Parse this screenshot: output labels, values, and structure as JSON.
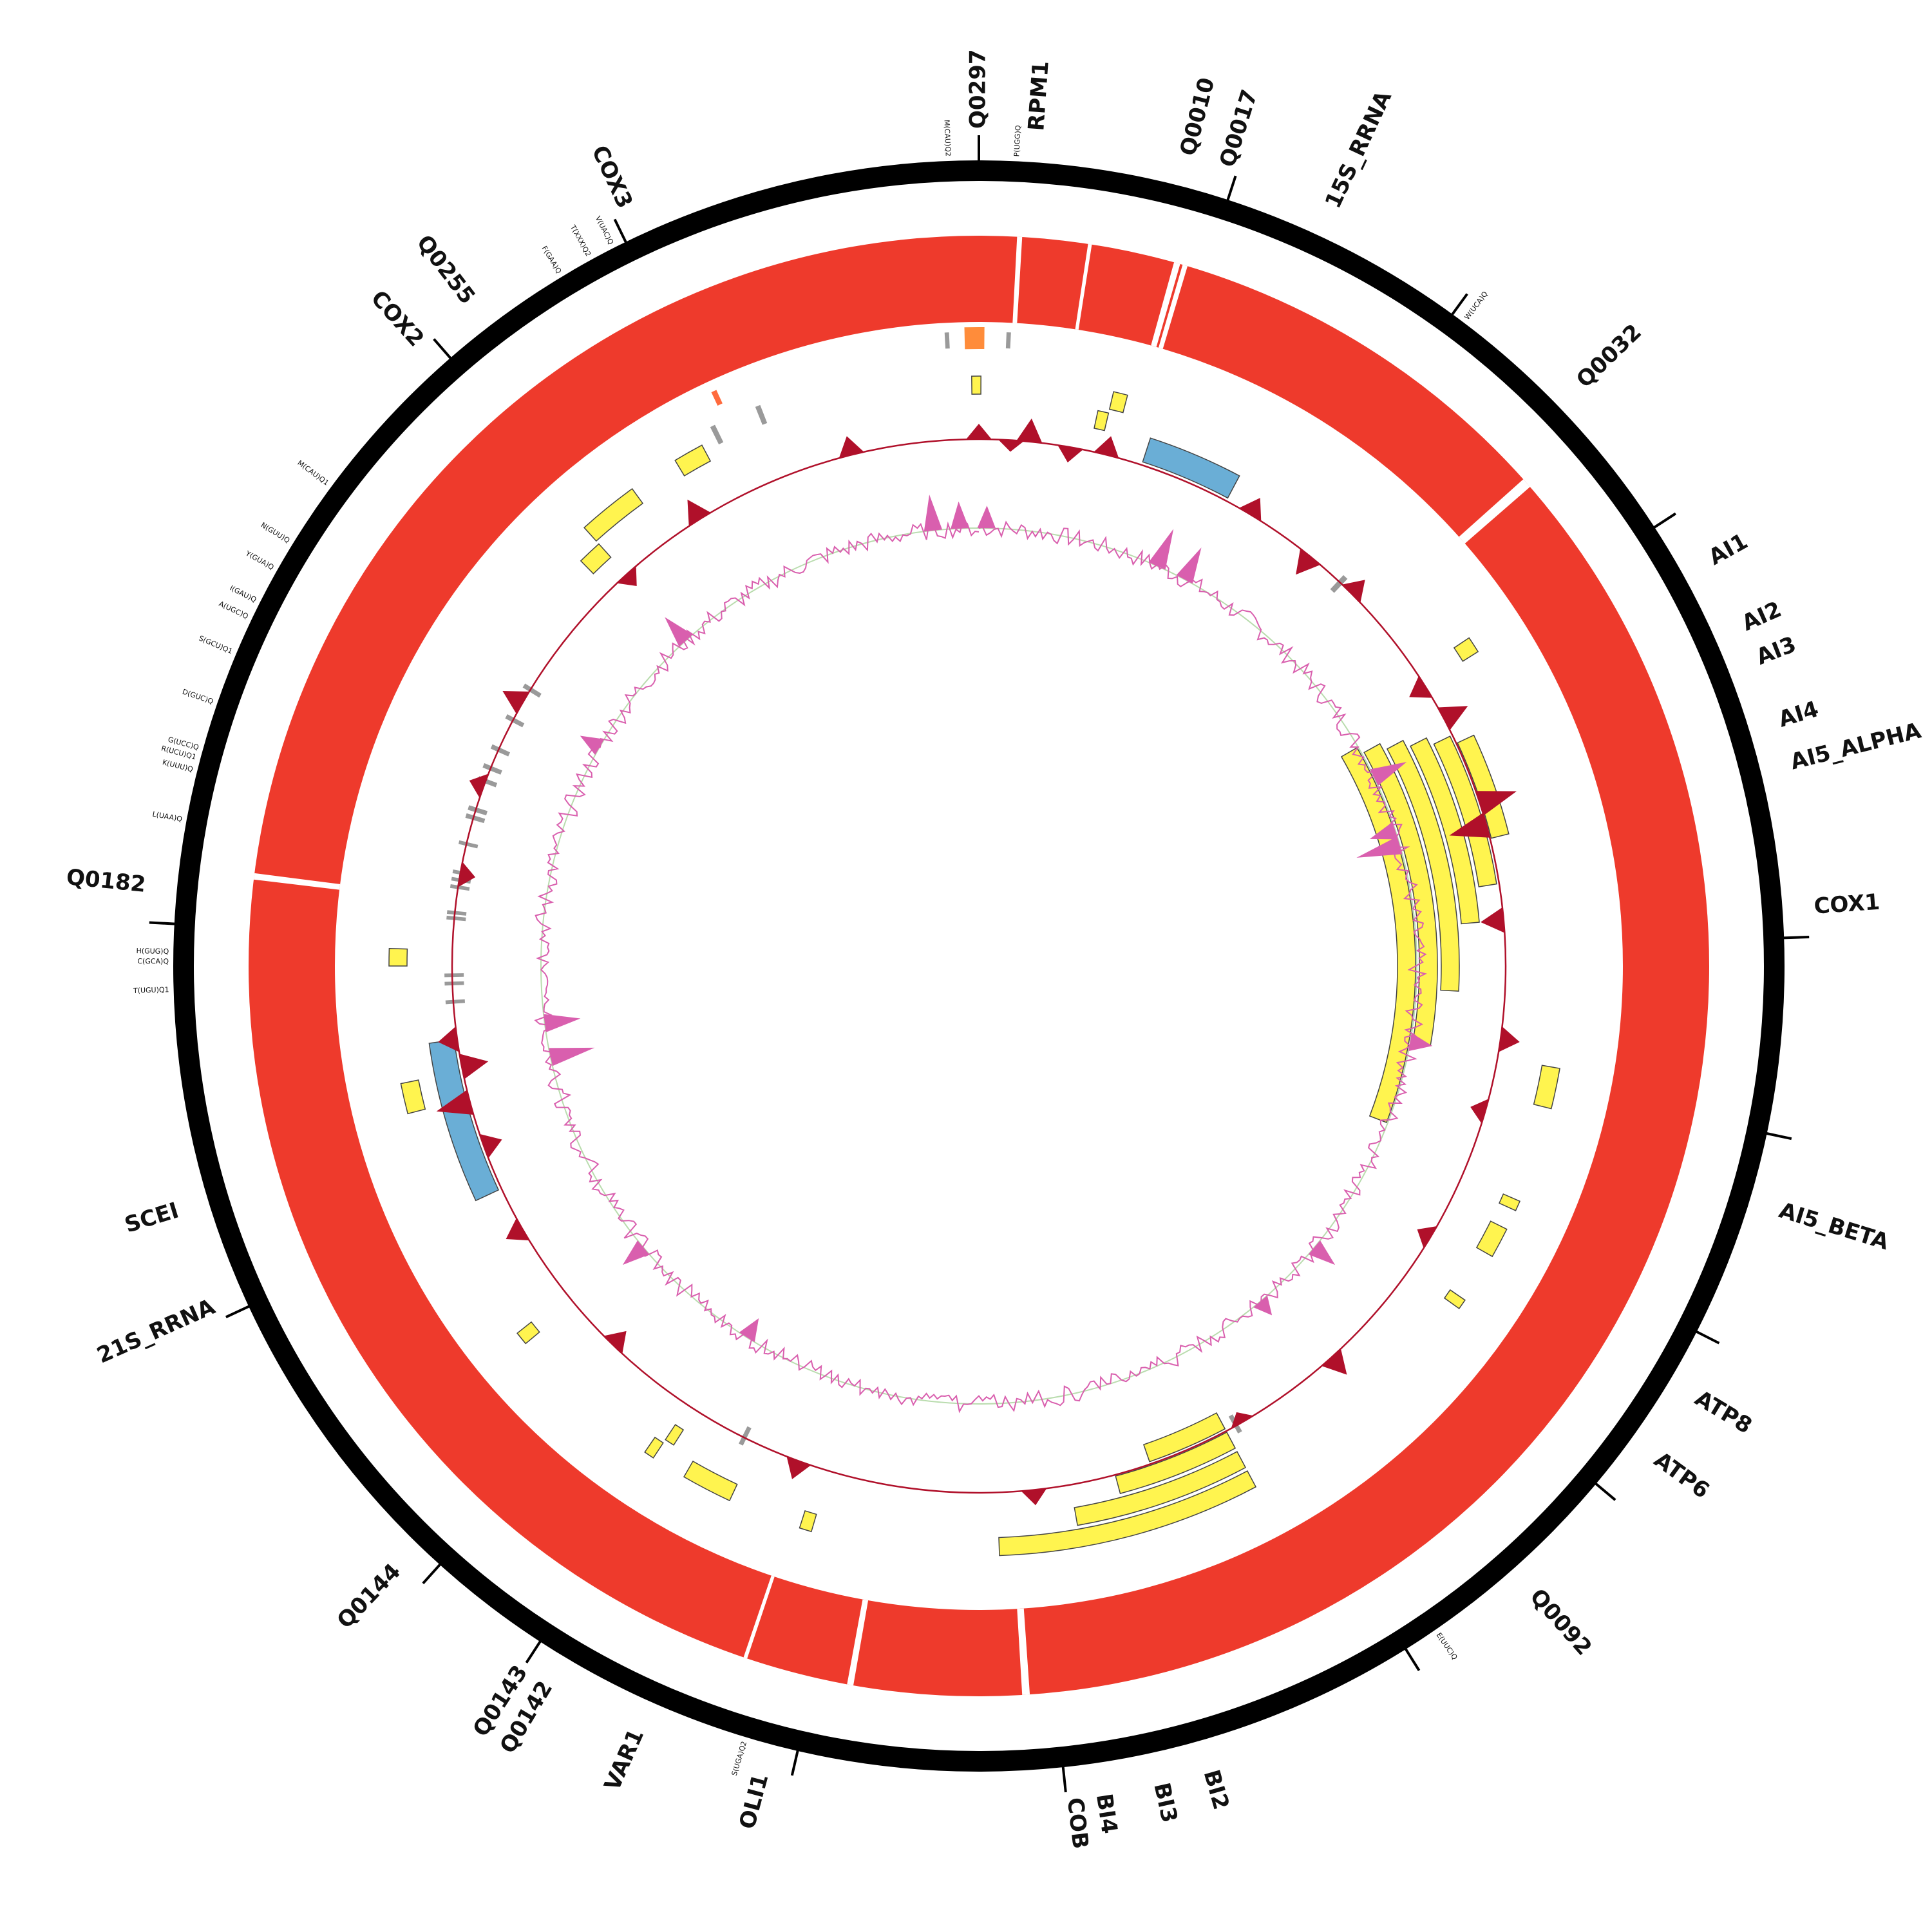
{
  "colors": {
    "backbone": "#000000",
    "coverage": "#ee3a2c",
    "feature": "#fff44f",
    "rrna": "#6aaed6",
    "trna": "#9a9a9a",
    "trna_highlight": "#ff6a3d",
    "orange_box": "#ff8c3a",
    "gc_skew": "#b0102a",
    "gc_content": "#d95fae",
    "gc_baseline": "#b9dcae"
  },
  "gene_labels": [
    {
      "text": "Q0297",
      "angle": 0.0,
      "size": "large"
    },
    {
      "text": "RPM1",
      "angle": 4.0,
      "size": "large"
    },
    {
      "text": "Q0010",
      "angle": 14.5,
      "size": "large"
    },
    {
      "text": "Q0017",
      "angle": 17.3,
      "size": "large"
    },
    {
      "text": "15S_RRNA",
      "angle": 25.0,
      "size": "large"
    },
    {
      "text": "Q0032",
      "angle": 46.0,
      "size": "large"
    },
    {
      "text": "AI1",
      "angle": 61.0,
      "size": "large"
    },
    {
      "text": "AI2",
      "angle": 66.0,
      "size": "large"
    },
    {
      "text": "AI3",
      "angle": 68.5,
      "size": "large"
    },
    {
      "text": "AI4",
      "angle": 73.0,
      "size": "large"
    },
    {
      "text": "AI5_ALPHA",
      "angle": 76.0,
      "size": "large"
    },
    {
      "text": "COX1",
      "angle": 86.0,
      "size": "large"
    },
    {
      "text": "AI5_BETA",
      "angle": 107.0,
      "size": "large"
    },
    {
      "text": "ATP8",
      "angle": 121.0,
      "size": "large"
    },
    {
      "text": "ATP6",
      "angle": 126.0,
      "size": "large"
    },
    {
      "text": "Q0092",
      "angle": 138.5,
      "size": "large"
    },
    {
      "text": "BI2",
      "angle": 164.0,
      "size": "large"
    },
    {
      "text": "BI3",
      "angle": 167.5,
      "size": "large"
    },
    {
      "text": "BI4",
      "angle": 171.5,
      "size": "large"
    },
    {
      "text": "COB",
      "angle": 173.5,
      "size": "large"
    },
    {
      "text": "OLI1",
      "angle": 195.0,
      "size": "large"
    },
    {
      "text": "VAR1",
      "angle": 204.0,
      "size": "large"
    },
    {
      "text": "Q0142",
      "angle": 211.0,
      "size": "large"
    },
    {
      "text": "Q0143",
      "angle": 213.0,
      "size": "large"
    },
    {
      "text": "Q0144",
      "angle": 224.0,
      "size": "large"
    },
    {
      "text": "21S_RRNA",
      "angle": 246.0,
      "size": "large"
    },
    {
      "text": "SCEI",
      "angle": 253.0,
      "size": "large"
    },
    {
      "text": "Q0182",
      "angle": 275.5,
      "size": "large"
    },
    {
      "text": "COX2",
      "angle": 318.0,
      "size": "large"
    },
    {
      "text": "Q0255",
      "angle": 322.5,
      "size": "large"
    },
    {
      "text": "COX3",
      "angle": 335.0,
      "size": "large"
    }
  ],
  "trna_labels": [
    {
      "text": "M(CAU)Q2",
      "angle": 357.8
    },
    {
      "text": "P(UGG)Q",
      "angle": 2.7
    },
    {
      "text": "W(UCA)Q",
      "angle": 37.0
    },
    {
      "text": "E(UUC)Q",
      "angle": 145.5
    },
    {
      "text": "S(UGA)Q2",
      "angle": 196.8
    },
    {
      "text": "V(UAC)Q",
      "angle": 333.0
    },
    {
      "text": "T(XXX)Q2",
      "angle": 331.2
    },
    {
      "text": "F(GAA)Q",
      "angle": 328.8
    },
    {
      "text": "M(CAU)Q1",
      "angle": 306.5
    },
    {
      "text": "N(GUU)Q",
      "angle": 301.6
    },
    {
      "text": "Y(GUA)Q",
      "angle": 299.4
    },
    {
      "text": "I(GAU)Q",
      "angle": 296.8
    },
    {
      "text": "A(UGC)Q",
      "angle": 295.5
    },
    {
      "text": "S(GCU)Q1",
      "angle": 292.8
    },
    {
      "text": "D(GUC)Q",
      "angle": 289.0
    },
    {
      "text": "G(UCC)Q",
      "angle": 285.6
    },
    {
      "text": "R(UCU)Q1",
      "angle": 284.9
    },
    {
      "text": "K(UUU)Q",
      "angle": 284.0
    },
    {
      "text": "L(UAA)Q",
      "angle": 280.4
    },
    {
      "text": "H(GUG)Q",
      "angle": 271.0
    },
    {
      "text": "C(GCA)Q",
      "angle": 270.3
    },
    {
      "text": "T(UGU)Q1",
      "angle": 268.3
    }
  ],
  "ticks": [
    0,
    18,
    36,
    57,
    88,
    102,
    117,
    130,
    148,
    174,
    193,
    213,
    222,
    245,
    273,
    319,
    334
  ],
  "track_blocks": [
    {
      "track": "trna",
      "start": 356.9,
      "end": 357.3
    },
    {
      "track": "trna",
      "start": 2.5,
      "end": 2.9
    },
    {
      "track": "orange",
      "start": 358.7,
      "end": 0.5
    },
    {
      "track": "trna",
      "start": 43.0,
      "end": 43.6
    },
    {
      "track": "trna",
      "start": 333.5,
      "end": 334.0
    },
    {
      "track": "trna_highlight",
      "start": 335.0,
      "end": 335.5
    },
    {
      "track": "trna",
      "start": 338.2,
      "end": 338.7
    },
    {
      "track": "trna",
      "start": 301.4,
      "end": 301.9
    },
    {
      "track": "trna",
      "start": 297.6,
      "end": 298.1
    },
    {
      "track": "trna",
      "start": 294.0,
      "end": 294.5
    },
    {
      "track": "trna",
      "start": 291.8,
      "end": 292.3
    },
    {
      "track": "trna",
      "start": 290.3,
      "end": 290.8
    },
    {
      "track": "trna",
      "start": 287.0,
      "end": 287.5
    },
    {
      "track": "trna",
      "start": 286.1,
      "end": 286.6
    },
    {
      "track": "trna",
      "start": 283.2,
      "end": 283.6
    },
    {
      "track": "trna",
      "start": 280.0,
      "end": 280.4
    },
    {
      "track": "trna",
      "start": 279.2,
      "end": 279.6
    },
    {
      "track": "trna",
      "start": 278.4,
      "end": 278.8
    },
    {
      "track": "trna",
      "start": 275.6,
      "end": 276.0
    },
    {
      "track": "trna",
      "start": 275.0,
      "end": 275.4
    },
    {
      "track": "trna",
      "start": 268.8,
      "end": 269.2
    },
    {
      "track": "trna",
      "start": 267.9,
      "end": 268.3
    },
    {
      "track": "trna",
      "start": 265.9,
      "end": 266.3
    },
    {
      "track": "trna",
      "start": 150.5,
      "end": 151.0
    },
    {
      "track": "trna",
      "start": 206.2,
      "end": 206.7
    },
    {
      "track": "rrna",
      "start": 18.0,
      "end": 28.0
    },
    {
      "track": "rrna",
      "start": 245.0,
      "end": 262.0
    },
    {
      "track": "feature",
      "start": 13.2,
      "end": 14.6,
      "level": 0
    },
    {
      "track": "feature",
      "start": 12.1,
      "end": 13.2,
      "level": 1
    },
    {
      "track": "feature",
      "start": 359.3,
      "end": 0.2,
      "level": 0
    },
    {
      "track": "feature",
      "start": 329.0,
      "end": 332.0,
      "level": 0
    },
    {
      "track": "feature",
      "start": 318.0,
      "end": 324.0,
      "level": 0
    },
    {
      "track": "feature",
      "start": 315.5,
      "end": 318.0,
      "level": 1
    },
    {
      "track": "feature",
      "start": 270.0,
      "end": 271.7,
      "level": 0
    },
    {
      "track": "feature",
      "start": 255.5,
      "end": 258.5,
      "level": 0
    },
    {
      "track": "feature",
      "start": 230.2,
      "end": 231.5,
      "level": 0
    },
    {
      "track": "feature",
      "start": 213.5,
      "end": 214.5,
      "level": 0
    },
    {
      "track": "feature",
      "start": 212.5,
      "end": 213.5,
      "level": 1
    },
    {
      "track": "feature",
      "start": 205.0,
      "end": 210.0,
      "level": 0
    },
    {
      "track": "feature",
      "start": 196.5,
      "end": 197.7,
      "level": 0
    },
    {
      "track": "feature",
      "start": 56.2,
      "end": 57.8,
      "level": 0
    },
    {
      "track": "feature",
      "start": 100.0,
      "end": 104.0,
      "level": 0
    },
    {
      "track": "feature",
      "start": 113.5,
      "end": 114.5,
      "level": 0
    },
    {
      "track": "feature",
      "start": 116.5,
      "end": 119.5,
      "level": 0
    },
    {
      "track": "feature",
      "start": 124.5,
      "end": 125.5,
      "level": 0
    },
    {
      "track": "feature",
      "start": 60.0,
      "end": 111.0,
      "level": 7
    },
    {
      "track": "feature",
      "start": 61.0,
      "end": 100.0,
      "level": 6
    },
    {
      "track": "feature",
      "start": 62.0,
      "end": 93.0,
      "level": 5
    },
    {
      "track": "feature",
      "start": 63.0,
      "end": 85.0,
      "level": 4
    },
    {
      "track": "feature",
      "start": 64.0,
      "end": 81.0,
      "level": 3
    },
    {
      "track": "feature",
      "start": 65.0,
      "end": 76.0,
      "level": 2
    },
    {
      "track": "feature",
      "start": 152.0,
      "end": 178.0,
      "level": 0
    },
    {
      "track": "feature",
      "start": 152.0,
      "end": 170.0,
      "level": 1
    },
    {
      "track": "feature",
      "start": 152.0,
      "end": 165.0,
      "level": 2
    },
    {
      "track": "feature",
      "start": 152.0,
      "end": 161.0,
      "level": 3
    }
  ],
  "gc_skew_spikes": [
    {
      "angle": 0.0,
      "value": 0.4
    },
    {
      "angle": 3.5,
      "value": -0.3
    },
    {
      "angle": 5.5,
      "value": 0.6
    },
    {
      "angle": 10.0,
      "value": -0.4
    },
    {
      "angle": 14.0,
      "value": 0.5
    },
    {
      "angle": 31.0,
      "value": 0.5
    },
    {
      "angle": 39.0,
      "value": -0.6
    },
    {
      "angle": 45.0,
      "value": 0.5
    },
    {
      "angle": 58.0,
      "value": -0.5
    },
    {
      "angle": 62.0,
      "value": 0.7
    },
    {
      "angle": 72.0,
      "value": 1.0
    },
    {
      "angle": 74.5,
      "value": -1.0
    },
    {
      "angle": 85.0,
      "value": -0.6
    },
    {
      "angle": 98.0,
      "value": 0.5
    },
    {
      "angle": 106.0,
      "value": -0.4
    },
    {
      "angle": 121.0,
      "value": -0.4
    },
    {
      "angle": 138.0,
      "value": 0.6
    },
    {
      "angle": 150.0,
      "value": -0.3
    },
    {
      "angle": 174.0,
      "value": 0.4
    },
    {
      "angle": 200.0,
      "value": 0.5
    },
    {
      "angle": 224.0,
      "value": -0.5
    },
    {
      "angle": 240.0,
      "value": 0.5
    },
    {
      "angle": 250.0,
      "value": -0.5
    },
    {
      "angle": 255.0,
      "value": 0.9
    },
    {
      "angle": 259.0,
      "value": -0.7
    },
    {
      "angle": 262.0,
      "value": 0.5
    },
    {
      "angle": 280.0,
      "value": -0.4
    },
    {
      "angle": 290.0,
      "value": 0.4
    },
    {
      "angle": 300.0,
      "value": 0.6
    },
    {
      "angle": 318.0,
      "value": -0.4
    },
    {
      "angle": 328.0,
      "value": 0.6
    },
    {
      "angle": 346.0,
      "value": 0.5
    }
  ],
  "gc_content_spikes": [
    {
      "angle": 354.0,
      "value": 0.8
    },
    {
      "angle": 357.5,
      "value": 0.6
    },
    {
      "angle": 1.0,
      "value": 0.5
    },
    {
      "angle": 24.0,
      "value": 0.9
    },
    {
      "angle": 28.0,
      "value": 0.8
    },
    {
      "angle": 64.5,
      "value": 0.8
    },
    {
      "angle": 72.0,
      "value": -0.6
    },
    {
      "angle": 74.0,
      "value": -1.0
    },
    {
      "angle": 100.0,
      "value": 0.5
    },
    {
      "angle": 130.0,
      "value": 0.6
    },
    {
      "angle": 140.0,
      "value": 0.4
    },
    {
      "angle": 212.0,
      "value": -0.5
    },
    {
      "angle": 230.0,
      "value": 0.6
    },
    {
      "angle": 258.0,
      "value": -1.0
    },
    {
      "angle": 262.5,
      "value": -0.8
    },
    {
      "angle": 300.0,
      "value": 0.5
    },
    {
      "angle": 318.0,
      "value": 0.7
    }
  ]
}
